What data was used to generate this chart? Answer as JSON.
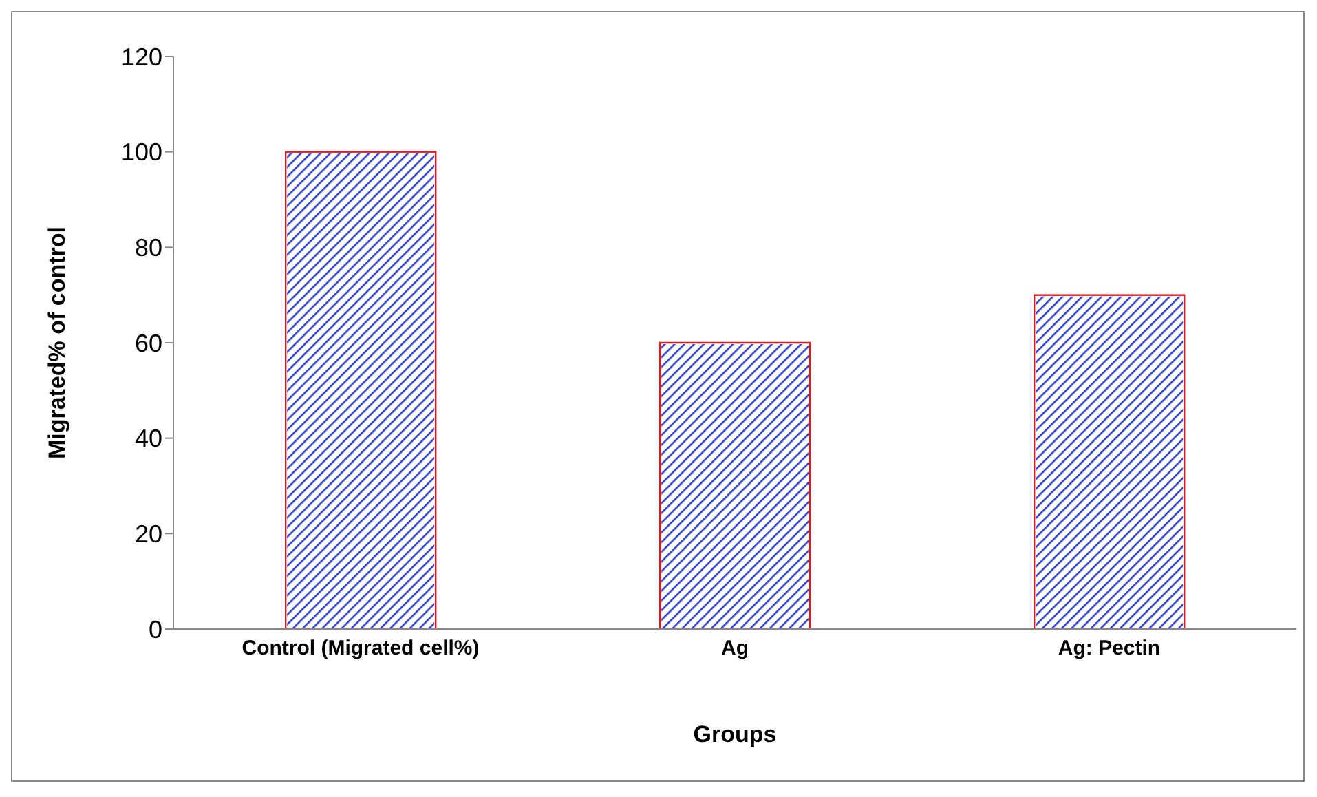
{
  "chart_data": {
    "type": "bar",
    "xlabel": "Groups",
    "ylabel": "Migrated% of control",
    "categories": [
      "Control (Migrated cell%)",
      "Ag",
      "Ag: Pectin"
    ],
    "values": [
      100,
      60,
      70
    ],
    "color": "#2b3fd6",
    "ylim": [
      0,
      120
    ],
    "yticks": [
      0,
      20,
      40,
      60,
      80,
      100,
      120
    ],
    "grid": false
  }
}
